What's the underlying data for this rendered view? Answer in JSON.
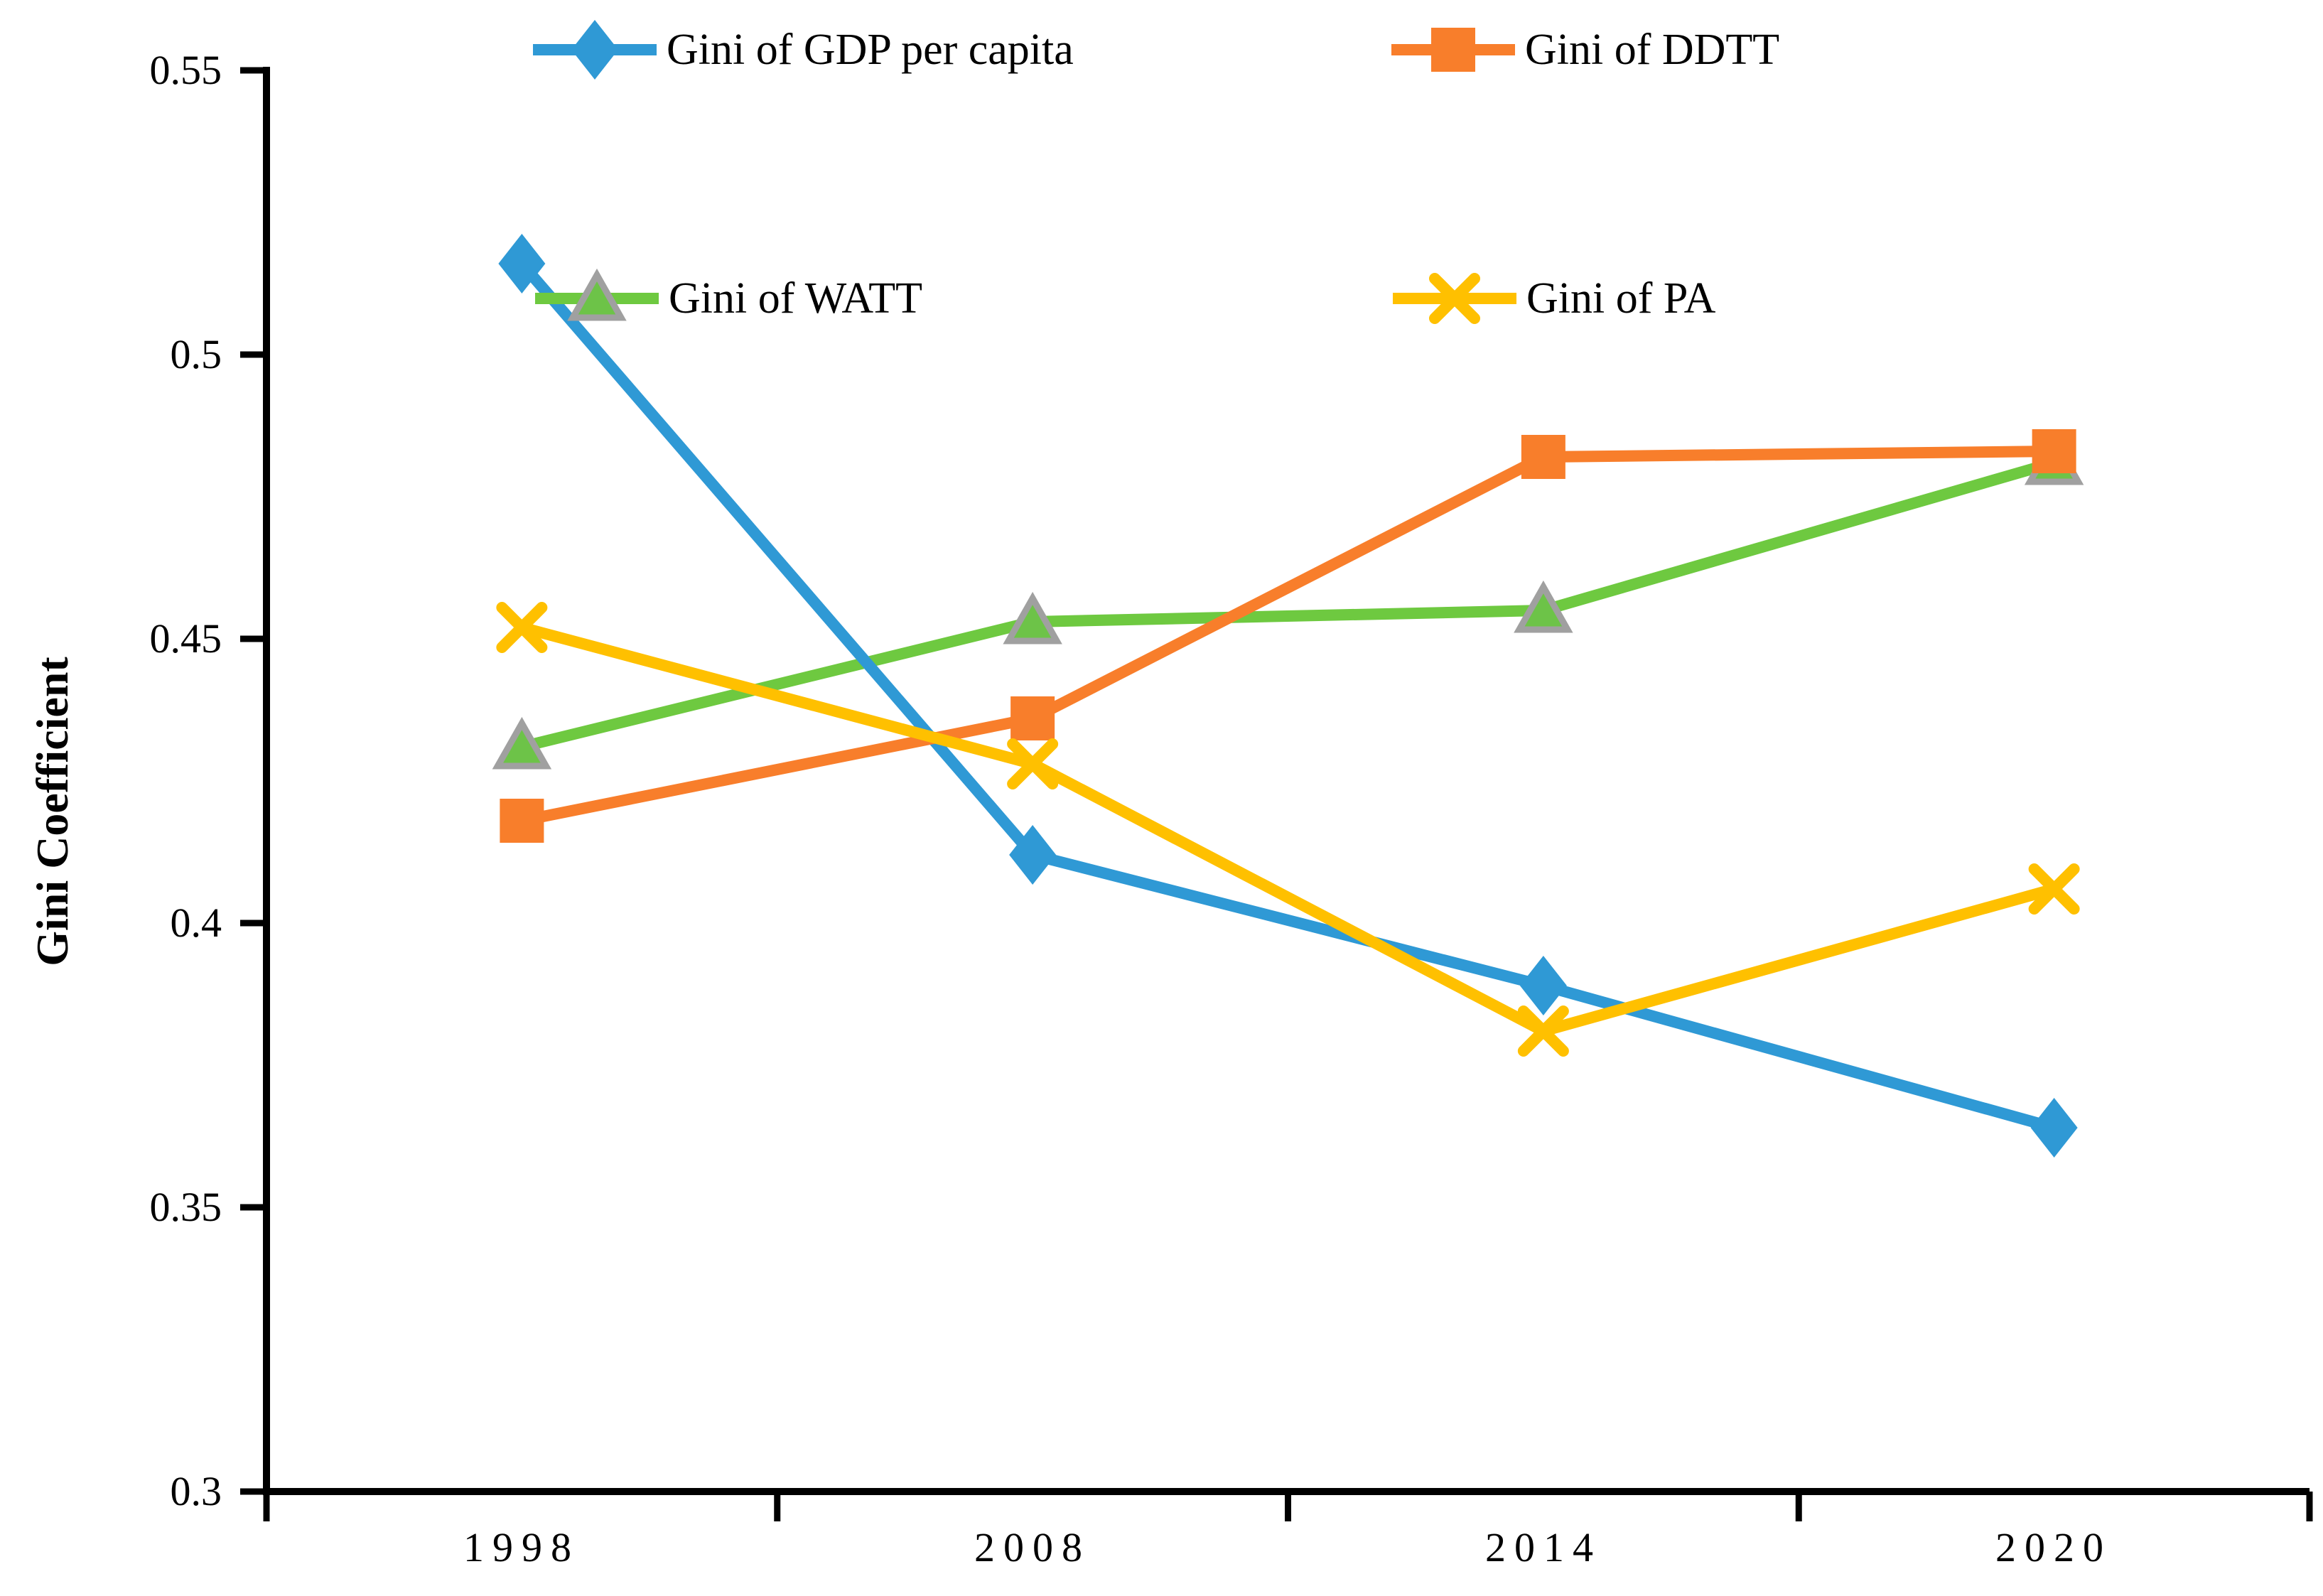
{
  "chart_data": {
    "type": "line",
    "title": "",
    "xlabel": "",
    "ylabel": "Gini Coefficient",
    "categories": [
      "1998",
      "2008",
      "2014",
      "2020"
    ],
    "ylim": [
      0.3,
      0.55
    ],
    "ytick_step": 0.05,
    "ytick_labels": [
      "0.55",
      "0.5",
      "0.45",
      "0.4",
      "0.35",
      "0.3"
    ],
    "grid": false,
    "legend_position": "top-inside-two-rows",
    "axis_color": "#000000",
    "series": [
      {
        "name": "Gini of GDP per capita",
        "color": "#2F99D5",
        "marker": "diamond",
        "values": [
          0.516,
          0.412,
          0.389,
          0.364
        ]
      },
      {
        "name": "Gini of DDTT",
        "color": "#F87E2B",
        "marker": "square",
        "values": [
          0.418,
          0.436,
          0.482,
          0.483
        ]
      },
      {
        "name": "Gini of WATT",
        "color": "#6EC940",
        "marker": "triangle",
        "marker_fill": "#6DC348",
        "marker_stroke": "#A0A0A0",
        "values": [
          0.431,
          0.453,
          0.455,
          0.481
        ]
      },
      {
        "name": "Gini of PA",
        "color": "#FFC000",
        "marker": "x",
        "values": [
          0.452,
          0.428,
          0.381,
          0.406
        ]
      }
    ]
  }
}
